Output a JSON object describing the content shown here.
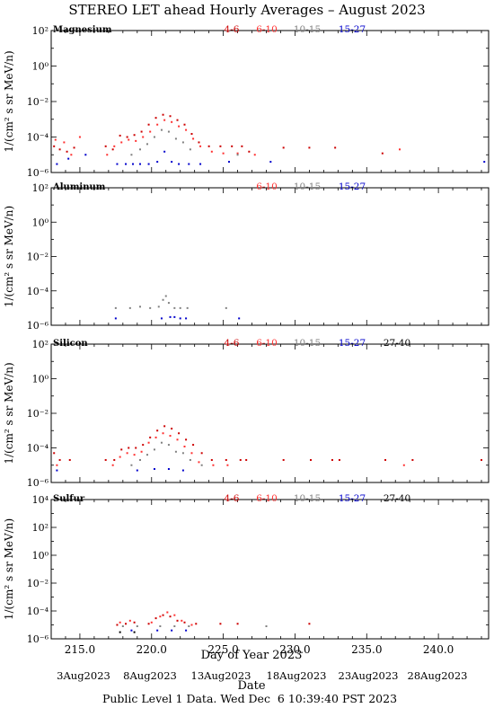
{
  "title": "STEREO LET ahead Hourly Averages – August 2023",
  "ylabel": "1/(cm² s sr MeV/n)",
  "xlabel": "Day of Year 2023",
  "date_axis_label": "Date",
  "footer": "Public Level 1 Data. Wed Dec  6 10:39:40 PST 2023",
  "x_ticks": [
    "215.0",
    "220.0",
    "225.0",
    "230.0",
    "235.0",
    "240.0"
  ],
  "date_ticks": [
    "3Aug2023",
    "8Aug2023",
    "13Aug2023",
    "18Aug2023",
    "23Aug2023",
    "28Aug2023"
  ],
  "energy_bins": [
    {
      "label": "4-6",
      "color": "#cc0000"
    },
    {
      "label": "6-10",
      "color": "#ff3030"
    },
    {
      "label": "10-15",
      "color": "#808080"
    },
    {
      "label": "15-27",
      "color": "#0000cc"
    },
    {
      "label": "27-40",
      "color": "#000000"
    }
  ],
  "chart_data": [
    {
      "type": "scatter",
      "element": "Magnesium",
      "legend": [
        "4-6",
        "6-10",
        "10-15",
        "15-27"
      ],
      "xlim": [
        213,
        243.5
      ],
      "ylim_log10": [
        -6,
        2
      ],
      "y_ticks": [
        "10⁻⁶",
        "10⁻⁴",
        "10⁻²",
        "10⁰",
        "10²"
      ],
      "series": [
        {
          "name": "4-6",
          "points": [
            [
              213.2,
              3e-05
            ],
            [
              213.6,
              2e-05
            ],
            [
              214.1,
              1.5e-05
            ],
            [
              214.6,
              2.5e-05
            ],
            [
              216.8,
              3e-05
            ],
            [
              217.3,
              2e-05
            ],
            [
              217.8,
              0.00012
            ],
            [
              218.3,
              0.0001
            ],
            [
              218.8,
              0.00013
            ],
            [
              219.3,
              0.0002
            ],
            [
              219.8,
              0.0005
            ],
            [
              220.3,
              0.0012
            ],
            [
              220.8,
              0.0018
            ],
            [
              221.3,
              0.0015
            ],
            [
              221.8,
              0.0009
            ],
            [
              222.3,
              0.0005
            ],
            [
              222.8,
              0.00015
            ],
            [
              223.3,
              5e-05
            ],
            [
              224.0,
              3e-05
            ],
            [
              224.8,
              3e-05
            ],
            [
              225.6,
              3e-05
            ],
            [
              226.3,
              3e-05
            ],
            [
              226.8,
              1.5e-05
            ],
            [
              229.2,
              2.5e-05
            ],
            [
              231.0,
              2.5e-05
            ],
            [
              232.8,
              2.5e-05
            ],
            [
              236.1,
              1.2e-05
            ]
          ]
        },
        {
          "name": "6-10",
          "points": [
            [
              213.3,
              7e-05
            ],
            [
              213.9,
              5e-05
            ],
            [
              214.4,
              1e-05
            ],
            [
              215.0,
              0.0001
            ],
            [
              216.9,
              1e-05
            ],
            [
              217.4,
              3e-05
            ],
            [
              217.9,
              5e-05
            ],
            [
              218.4,
              7e-05
            ],
            [
              218.9,
              6e-05
            ],
            [
              219.4,
              0.0001
            ],
            [
              219.9,
              0.0002
            ],
            [
              220.4,
              0.0005
            ],
            [
              220.9,
              0.0009
            ],
            [
              221.4,
              0.0007
            ],
            [
              221.9,
              0.0004
            ],
            [
              222.4,
              0.00025
            ],
            [
              222.9,
              8e-05
            ],
            [
              223.4,
              3e-05
            ],
            [
              224.2,
              1.5e-05
            ],
            [
              225.0,
              1.2e-05
            ],
            [
              226.0,
              1.2e-05
            ],
            [
              227.2,
              1e-05
            ],
            [
              237.3,
              2e-05
            ]
          ]
        },
        {
          "name": "10-15",
          "points": [
            [
              218.6,
              1e-05
            ],
            [
              219.2,
              2e-05
            ],
            [
              219.7,
              4e-05
            ],
            [
              220.2,
              0.0001
            ],
            [
              220.7,
              0.00025
            ],
            [
              221.2,
              0.0002
            ],
            [
              221.7,
              8e-05
            ],
            [
              222.2,
              5e-05
            ],
            [
              222.7,
              2e-05
            ],
            [
              226.0,
              1e-05
            ]
          ]
        },
        {
          "name": "15-27",
          "points": [
            [
              213.4,
              3e-06
            ],
            [
              214.2,
              6e-06
            ],
            [
              215.4,
              1e-05
            ],
            [
              217.6,
              3e-06
            ],
            [
              218.2,
              3e-06
            ],
            [
              218.7,
              3e-06
            ],
            [
              219.2,
              3e-06
            ],
            [
              219.8,
              3e-06
            ],
            [
              220.4,
              4e-06
            ],
            [
              220.9,
              1.5e-05
            ],
            [
              221.4,
              4e-06
            ],
            [
              221.9,
              3e-06
            ],
            [
              222.6,
              3e-06
            ],
            [
              223.4,
              3e-06
            ],
            [
              225.4,
              4e-06
            ],
            [
              228.3,
              4e-06
            ],
            [
              243.2,
              4e-06
            ]
          ]
        }
      ]
    },
    {
      "type": "scatter",
      "element": "Aluminum",
      "legend": [
        "6-10",
        "10-15",
        "15-27"
      ],
      "xlim": [
        213,
        243.5
      ],
      "ylim_log10": [
        -6,
        2
      ],
      "y_ticks": [
        "10⁻⁶",
        "10⁻⁴",
        "10⁻²",
        "10⁰",
        "10²"
      ],
      "series": [
        {
          "name": "6-10",
          "points": []
        },
        {
          "name": "10-15",
          "points": [
            [
              217.5,
              1e-05
            ],
            [
              218.5,
              1e-05
            ],
            [
              219.2,
              1.2e-05
            ],
            [
              219.9,
              1e-05
            ],
            [
              220.5,
              1.2e-05
            ],
            [
              220.8,
              3e-05
            ],
            [
              221.0,
              5e-05
            ],
            [
              221.2,
              2e-05
            ],
            [
              221.6,
              1e-05
            ],
            [
              222.0,
              1e-05
            ],
            [
              222.5,
              1e-05
            ],
            [
              225.2,
              1e-05
            ]
          ]
        },
        {
          "name": "15-27",
          "points": [
            [
              217.5,
              2.5e-06
            ],
            [
              220.7,
              2.5e-06
            ],
            [
              221.3,
              3e-06
            ],
            [
              221.6,
              3e-06
            ],
            [
              222.0,
              2.5e-06
            ],
            [
              222.4,
              2.5e-06
            ],
            [
              226.1,
              2.5e-06
            ]
          ]
        }
      ]
    },
    {
      "type": "scatter",
      "element": "Silicon",
      "legend": [
        "4-6",
        "6-10",
        "10-15",
        "15-27",
        "27-40"
      ],
      "xlim": [
        213,
        243.5
      ],
      "ylim_log10": [
        -6,
        2
      ],
      "y_ticks": [
        "10⁻⁶",
        "10⁻⁴",
        "10⁻²",
        "10⁰",
        "10²"
      ],
      "series": [
        {
          "name": "4-6",
          "points": [
            [
              213.2,
              5e-05
            ],
            [
              213.6,
              2e-05
            ],
            [
              214.3,
              2e-05
            ],
            [
              216.8,
              2e-05
            ],
            [
              217.4,
              2e-05
            ],
            [
              217.9,
              8e-05
            ],
            [
              218.4,
              0.0001
            ],
            [
              218.9,
              0.0001
            ],
            [
              219.4,
              0.00015
            ],
            [
              219.9,
              0.0004
            ],
            [
              220.4,
              0.001
            ],
            [
              220.9,
              0.0018
            ],
            [
              221.4,
              0.0013
            ],
            [
              221.9,
              0.0007
            ],
            [
              222.4,
              0.0003
            ],
            [
              222.9,
              0.00015
            ],
            [
              223.5,
              5e-05
            ],
            [
              224.2,
              2e-05
            ],
            [
              225.2,
              2e-05
            ],
            [
              226.2,
              2e-05
            ],
            [
              226.6,
              2e-05
            ],
            [
              229.2,
              2e-05
            ],
            [
              231.1,
              2e-05
            ],
            [
              232.6,
              2e-05
            ],
            [
              233.1,
              2e-05
            ],
            [
              236.3,
              2e-05
            ],
            [
              238.2,
              2e-05
            ],
            [
              243.0,
              2e-05
            ]
          ]
        },
        {
          "name": "6-10",
          "points": [
            [
              213.4,
              1e-05
            ],
            [
              217.3,
              1e-05
            ],
            [
              217.8,
              3e-05
            ],
            [
              218.3,
              5e-05
            ],
            [
              218.8,
              4e-05
            ],
            [
              219.3,
              6e-05
            ],
            [
              219.8,
              0.0002
            ],
            [
              220.3,
              0.0004
            ],
            [
              220.8,
              0.0007
            ],
            [
              221.3,
              0.0005
            ],
            [
              221.8,
              0.0003
            ],
            [
              222.3,
              0.00012
            ],
            [
              222.8,
              5e-05
            ],
            [
              223.3,
              1.5e-05
            ],
            [
              224.3,
              1e-05
            ],
            [
              225.3,
              1e-05
            ],
            [
              237.6,
              1e-05
            ]
          ]
        },
        {
          "name": "10-15",
          "points": [
            [
              218.6,
              1e-05
            ],
            [
              219.2,
              2e-05
            ],
            [
              219.7,
              4e-05
            ],
            [
              220.2,
              8e-05
            ],
            [
              220.7,
              0.0002
            ],
            [
              221.2,
              0.00015
            ],
            [
              221.7,
              6e-05
            ],
            [
              222.2,
              5e-05
            ],
            [
              222.7,
              2e-05
            ],
            [
              223.5,
              1e-05
            ]
          ]
        },
        {
          "name": "15-27",
          "points": [
            [
              213.4,
              5e-06
            ],
            [
              219.0,
              5e-06
            ],
            [
              220.2,
              6e-06
            ],
            [
              221.2,
              6e-06
            ],
            [
              222.2,
              5e-06
            ]
          ]
        },
        {
          "name": "27-40",
          "points": []
        }
      ]
    },
    {
      "type": "scatter",
      "element": "Sulfur",
      "legend": [
        "4-6",
        "6-10",
        "10-15",
        "15-27",
        "27-40"
      ],
      "xlim": [
        213,
        243.5
      ],
      "ylim_log10": [
        -6,
        4
      ],
      "y_ticks": [
        "10⁻⁶",
        "10⁻⁴",
        "10⁻²",
        "10⁰",
        "10²",
        "10⁴"
      ],
      "series": [
        {
          "name": "4-6",
          "points": [
            [
              217.6,
              1e-05
            ],
            [
              218.2,
              1.2e-05
            ],
            [
              218.8,
              1.5e-05
            ],
            [
              219.8,
              1.2e-05
            ],
            [
              220.3,
              3e-05
            ],
            [
              220.8,
              5e-05
            ],
            [
              221.3,
              4e-05
            ],
            [
              221.8,
              2e-05
            ],
            [
              222.3,
              1.5e-05
            ],
            [
              223.1,
              1.2e-05
            ],
            [
              224.8,
              1.2e-05
            ],
            [
              226.0,
              1.2e-05
            ],
            [
              231.0,
              1.2e-05
            ]
          ]
        },
        {
          "name": "6-10",
          "points": [
            [
              217.8,
              1.5e-05
            ],
            [
              218.5,
              2e-05
            ],
            [
              220.0,
              1.5e-05
            ],
            [
              220.6,
              4e-05
            ],
            [
              221.1,
              8e-05
            ],
            [
              221.6,
              5e-05
            ],
            [
              222.1,
              2e-05
            ],
            [
              222.8,
              1e-05
            ]
          ]
        },
        {
          "name": "10-15",
          "points": [
            [
              218.0,
              8e-06
            ],
            [
              219.0,
              8e-06
            ],
            [
              220.6,
              8e-06
            ],
            [
              221.6,
              8e-06
            ],
            [
              222.6,
              8e-06
            ],
            [
              228.0,
              8e-06
            ]
          ]
        },
        {
          "name": "15-27",
          "points": [
            [
              218.6,
              4e-06
            ],
            [
              220.4,
              4e-06
            ],
            [
              221.4,
              4e-06
            ],
            [
              222.4,
              4e-06
            ]
          ]
        },
        {
          "name": "27-40",
          "points": [
            [
              217.8,
              3e-06
            ],
            [
              218.8,
              3e-06
            ]
          ]
        }
      ]
    }
  ]
}
